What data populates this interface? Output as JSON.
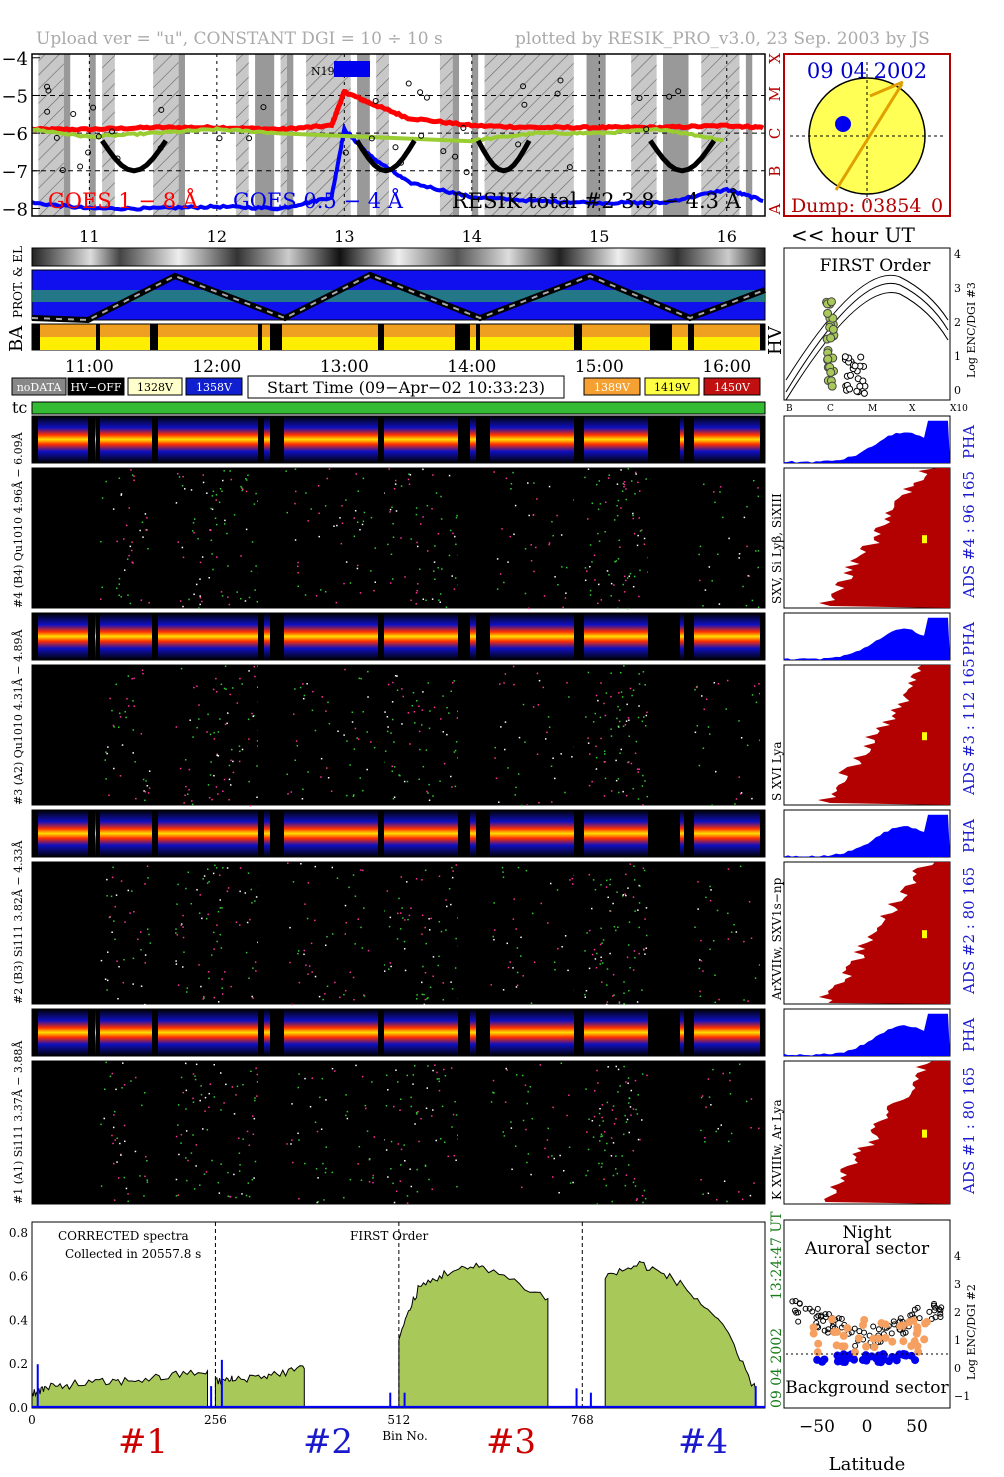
{
  "header": {
    "left": "Upload ver = \"u\", CONSTANT  DGI =  10 ÷  10 s",
    "right": "plotted by RESIK_PRO_v3.0, 23 Sep. 2003 by JS"
  },
  "colors": {
    "goes_long": "#ff0000",
    "goes_short": "#0000ff",
    "resik": "#9acd32",
    "fill": "#a8c85a",
    "spec_red": "#b30000",
    "spec_blue": "#0000ff",
    "dark_green": "#1a7a1a",
    "orange": "#f5a020",
    "yellow": "#ffff66"
  },
  "goes_panel": {
    "yticks": [
      "−4",
      "−5",
      "−6",
      "−7",
      "−8"
    ],
    "class_letters": [
      "X",
      "M",
      "C",
      "B",
      "A"
    ],
    "legend": {
      "goes_long": "GOES 1 − 8 Å",
      "goes_short": "GOES 0.5 − 4 Å",
      "resik": "RESIK total #2  3.8 − 4.3 Å"
    },
    "flare_label": "N19",
    "hour_labels": [
      "11",
      "12",
      "13",
      "14",
      "15",
      "16"
    ],
    "hour_unit": "<< hour UT"
  },
  "sun_panel": {
    "date": "09 04 2002",
    "dump": "Dump: 03854_0"
  },
  "status_rows": {
    "label_prot": "PROT. & EL",
    "label_ba": "BA",
    "hv_label": "HV",
    "time_labels": [
      "11:00",
      "12:00",
      "13:00",
      "14:00",
      "15:00",
      "16:00"
    ],
    "legend_left": [
      "noDATA",
      "HV−OFF",
      "1328V",
      "1358V"
    ],
    "start_time": "Start Time (09−Apr−02 10:33:23)",
    "legend_right": [
      "1389V",
      "1419V",
      "1450V"
    ],
    "tc": "tc"
  },
  "hv_panel": {
    "title": "FIRST Order",
    "yticks": [
      "4",
      "3",
      "2",
      "1",
      "0"
    ],
    "ylabel": "Log ENC/DGI #3",
    "xticks": [
      "B",
      "C",
      "M",
      "X",
      "X10"
    ]
  },
  "channels": [
    {
      "pha_label": "#4 (B4) Qu1010 4.96Å − 6.09Å",
      "line_label": "SXV, Si Lyβ, SiXIII",
      "ads": "ADS #4 :   96 165",
      "pha": "PHA"
    },
    {
      "pha_label": "#3 (A2) Qu1010 4.31Å − 4.89Å",
      "line_label": "S XVI Lya",
      "ads": "ADS #3 :  112 165",
      "pha": "PHA"
    },
    {
      "pha_label": "#2 (B3) Si111  3.82Å − 4.33Å",
      "line_label": "ArXVIIw, SXV1s−np",
      "ads": "ADS #2 :   80 165",
      "pha": "PHA"
    },
    {
      "pha_label": "#1 (A1) Si111  3.37Å − 3.88Å",
      "line_label": "K XVIIIw, Ar Lya",
      "ads": "ADS #1 :   80 165",
      "pha": "PHA"
    }
  ],
  "spectra_panel": {
    "title_left_1": "CORRECTED spectra",
    "title_left_2": "Collected in 20557.8 s",
    "title_mid": "FIRST Order",
    "yticks": [
      "0.8",
      "0.6",
      "0.4",
      "0.2",
      "0.0"
    ],
    "xticks": [
      "0",
      "256",
      "512",
      "768"
    ],
    "xlabel": "Bin No.",
    "channel_labels": [
      "#1",
      "#2",
      "#3",
      "#4"
    ],
    "side_time": "13:24:47 UT",
    "side_date": "09 04 2002"
  },
  "lat_panel": {
    "title_1": "Night",
    "title_2": "Auroral sector",
    "bottom_label": "Background sector",
    "xticks": [
      "−50",
      "0",
      "50"
    ],
    "xlabel": "Latitude",
    "yticks": [
      "4",
      "3",
      "2",
      "1",
      "0",
      "−1"
    ],
    "ylabel": "Log ENC/DGI #2"
  },
  "chart_data": [
    {
      "type": "line",
      "title": "",
      "xlabel": "hour UT",
      "ylabel": "",
      "x": [
        10.55,
        11.0,
        11.5,
        12.0,
        12.5,
        12.9,
        13.0,
        13.2,
        13.5,
        14.0,
        14.5,
        15.0,
        15.5,
        16.0,
        16.3
      ],
      "ylim": [
        -8.2,
        -3.9
      ],
      "series": [
        {
          "name": "GOES 1 − 8 Å",
          "values": [
            -5.9,
            -5.9,
            -5.85,
            -5.85,
            -5.9,
            -5.8,
            -4.9,
            -5.2,
            -5.6,
            -5.8,
            -5.85,
            -5.85,
            -5.85,
            -5.8,
            -5.85
          ]
        },
        {
          "name": "GOES 0.5 − 4 Å",
          "values": [
            -7.85,
            -8.0,
            -8.0,
            -7.95,
            -8.0,
            -7.7,
            -5.9,
            -6.6,
            -7.3,
            -7.7,
            -7.8,
            -7.85,
            -7.85,
            -7.5,
            -7.8
          ]
        },
        {
          "name": "RESIK total #2  3.8 − 4.3 Å",
          "values": [
            -5.9,
            -6.1,
            -6.0,
            -5.9,
            -6.0,
            null,
            null,
            null,
            null,
            -6.2,
            -6.0,
            -6.0,
            -5.9,
            -6.2,
            null
          ]
        }
      ]
    },
    {
      "type": "area",
      "title": "FIRST Order",
      "xlabel": "Bin No.",
      "ylabel": "",
      "xlim": [
        0,
        1023
      ],
      "ylim": [
        0,
        0.85
      ],
      "x": [
        0,
        20,
        60,
        120,
        180,
        245,
        256,
        280,
        330,
        380,
        500,
        512,
        540,
        580,
        630,
        720,
        768,
        800,
        850,
        900,
        960,
        1010
      ],
      "series": [
        {
          "name": "#1",
          "values": [
            0.07,
            0.09,
            0.11,
            0.12,
            0.14,
            0.17,
            null,
            null,
            null,
            null,
            null,
            null,
            null,
            null,
            null,
            null,
            null,
            null,
            null,
            null,
            null,
            null
          ]
        },
        {
          "name": "#2",
          "values": [
            null,
            null,
            null,
            null,
            null,
            null,
            0.12,
            0.13,
            0.15,
            0.18,
            null,
            null,
            null,
            null,
            null,
            null,
            null,
            null,
            null,
            null,
            null,
            null
          ]
        },
        {
          "name": "#3",
          "values": [
            null,
            null,
            null,
            null,
            null,
            null,
            null,
            null,
            null,
            null,
            null,
            0.33,
            0.55,
            0.62,
            0.65,
            0.5,
            null,
            null,
            null,
            null,
            null,
            null
          ]
        },
        {
          "name": "#4",
          "values": [
            null,
            null,
            null,
            null,
            null,
            null,
            null,
            null,
            null,
            null,
            null,
            null,
            null,
            null,
            null,
            null,
            null,
            0.6,
            0.66,
            0.58,
            0.4,
            0.08
          ]
        }
      ]
    },
    {
      "type": "bar",
      "title": "",
      "categories": [
        "ADS #4",
        "ADS #3",
        "ADS #2",
        "ADS #1"
      ],
      "series": [
        {
          "name": "",
          "values": [
            96,
            112,
            80,
            80
          ]
        }
      ]
    }
  ]
}
